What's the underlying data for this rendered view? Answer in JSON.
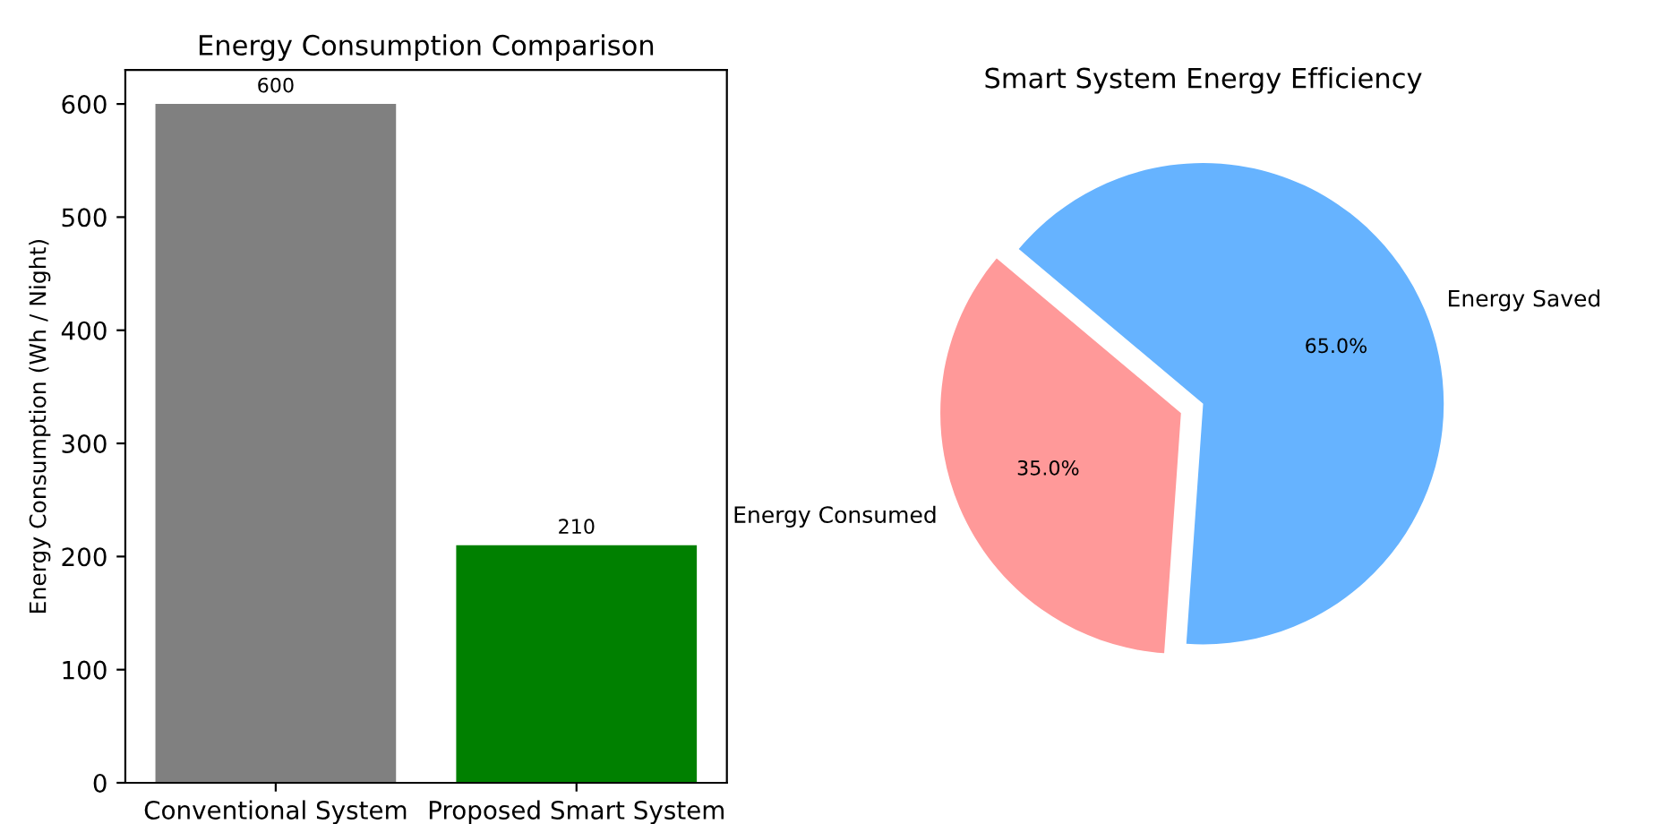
{
  "chart_data": [
    {
      "type": "bar",
      "title": "Energy Consumption Comparison",
      "ylabel": "Energy Consumption (Wh / Night)",
      "categories": [
        "Conventional System",
        "Proposed Smart System"
      ],
      "values": [
        600,
        210
      ],
      "colors": [
        "#808080",
        "#008000"
      ],
      "ylim": [
        0,
        630
      ],
      "yticks": [
        0,
        100,
        200,
        300,
        400,
        500,
        600
      ],
      "data_labels": true,
      "grid": false
    },
    {
      "type": "pie",
      "title": "Smart System Energy Efficiency",
      "categories": [
        "Energy Consumed",
        "Energy Saved"
      ],
      "values": [
        35,
        65
      ],
      "colors": [
        "#ff9999",
        "#66b3ff"
      ],
      "value_labels": [
        "35.0%",
        "65.0%"
      ]
    }
  ]
}
